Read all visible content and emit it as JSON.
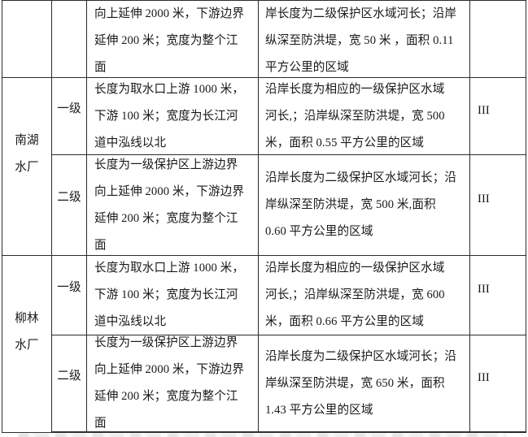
{
  "colors": {
    "border": "#2b2b2b",
    "text": "#181818",
    "page_bg": "#ffffff"
  },
  "table": {
    "continued_row": {
      "scope": "向上延伸 2000 米，下游边界\n延伸 200 米；宽度为整个江\n面",
      "shore": "岸长度为二级保护区水域河长；沿岸\n纵深至防洪堤，宽 50 米 ，面积 0.11\n平方公里的区域",
      "class": ""
    },
    "groups": [
      {
        "plant": "南湖\n水厂",
        "rows": [
          {
            "level": "一级",
            "scope": "长度为取水口上游 1000 米，\n下游 100 米；宽度为长江河\n道中泓线以北",
            "shore": "沿岸长度为相应的一级保护区水域\n河长,；沿岸纵深至防洪堤，宽 500\n米，面积 0.55 平方公里的区域",
            "class": "III"
          },
          {
            "level": "二级",
            "scope": "长度为一级保护区上游边界\n向上延伸 2000 米，下游边界\n延伸 200 米；宽度为整个江\n面",
            "shore": "沿岸长度为二级保护区水域河长；沿\n岸纵深至防洪堤，宽 500 米,面积\n0.60 平方公里的区域",
            "class": "III"
          }
        ]
      },
      {
        "plant": "柳林\n水厂",
        "rows": [
          {
            "level": "一级",
            "scope": "长度为取水口上游 1000 米，\n下游 100 米；宽度为长江河\n道中泓线以北",
            "shore": "沿岸长度为相应的一级保护区水域\n河长,；沿岸纵深至防洪堤，宽 600\n米，面积 0.66 平方公里的区域",
            "class": "III"
          },
          {
            "level": "二级",
            "scope": "长度为一级保护区上游边界\n向上延伸 2000 米，下游边界\n延伸 200 米；宽度为整个江\n面",
            "shore": "沿岸长度为二级保护区水域河长；沿\n岸纵深至防洪堤，宽 650 米，面积\n1.43 平方公里的区域",
            "class": "III"
          }
        ]
      }
    ]
  }
}
